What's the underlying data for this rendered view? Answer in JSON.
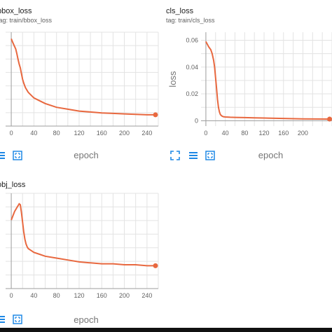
{
  "charts": [
    {
      "title": "bbox_loss",
      "tag": "tag: train/bbox_loss",
      "chart_data": {
        "type": "line",
        "xlabel": "epoch",
        "ylabel": "",
        "xlim": [
          -10,
          260
        ],
        "ylim": [
          0,
          1
        ],
        "xticks": [
          0,
          40,
          80,
          120,
          160,
          200,
          240
        ],
        "yticks": [],
        "series": [
          {
            "color": "#e8683f",
            "x": [
              0,
              2,
              5,
              8,
              10,
              12,
              14,
              16,
              18,
              20,
              22,
              25,
              30,
              35,
              40,
              50,
              60,
              80,
              100,
              120,
              140,
              160,
              180,
              200,
              220,
              240,
              255
            ],
            "y": [
              0.93,
              0.9,
              0.86,
              0.82,
              0.77,
              0.71,
              0.66,
              0.62,
              0.56,
              0.5,
              0.46,
              0.41,
              0.36,
              0.33,
              0.3,
              0.27,
              0.24,
              0.2,
              0.18,
              0.16,
              0.15,
              0.14,
              0.135,
              0.13,
              0.125,
              0.12,
              0.12
            ]
          }
        ]
      }
    },
    {
      "title": "cls_loss",
      "tag": "tag: train/cls_loss",
      "chart_data": {
        "type": "line",
        "xlabel": "epoch",
        "ylabel": "loss",
        "xlim": [
          -10,
          260
        ],
        "ylim": [
          -0.004,
          0.066
        ],
        "xticks": [
          0,
          40,
          80,
          120,
          160,
          200
        ],
        "yticks": [
          0,
          0.02,
          0.04,
          0.06
        ],
        "ytick_labels": [
          "0",
          "0.02",
          "0.04",
          "0.06"
        ],
        "series": [
          {
            "color": "#e8683f",
            "x": [
              0,
              3,
              6,
              10,
              13,
              16,
              18,
              20,
              22,
              24,
              26,
              28,
              30,
              33,
              36,
              40,
              50,
              60,
              80,
              100,
              120,
              160,
              200,
              255
            ],
            "y": [
              0.059,
              0.057,
              0.055,
              0.053,
              0.05,
              0.045,
              0.04,
              0.032,
              0.024,
              0.016,
              0.01,
              0.0065,
              0.0045,
              0.0035,
              0.003,
              0.0028,
              0.0026,
              0.0025,
              0.0023,
              0.0021,
              0.002,
              0.0017,
              0.0014,
              0.0012
            ]
          }
        ]
      }
    },
    {
      "title": "obj_loss",
      "tag": "",
      "chart_data": {
        "type": "line",
        "xlabel": "epoch",
        "ylabel": "",
        "xlim": [
          -10,
          260
        ],
        "ylim": [
          0,
          1
        ],
        "xticks": [
          0,
          40,
          80,
          120,
          160,
          200,
          240
        ],
        "yticks": [],
        "series": [
          {
            "color": "#e8683f",
            "x": [
              0,
              2,
              4,
              6,
              8,
              10,
              12,
              14,
              16,
              18,
              20,
              22,
              24,
              26,
              28,
              30,
              35,
              40,
              50,
              60,
              80,
              100,
              120,
              140,
              160,
              180,
              200,
              220,
              240,
              255
            ],
            "y": [
              0.72,
              0.75,
              0.78,
              0.81,
              0.83,
              0.85,
              0.87,
              0.89,
              0.88,
              0.8,
              0.7,
              0.6,
              0.52,
              0.47,
              0.44,
              0.42,
              0.4,
              0.38,
              0.36,
              0.34,
              0.32,
              0.3,
              0.28,
              0.27,
              0.26,
              0.26,
              0.25,
              0.25,
              0.24,
              0.24
            ]
          }
        ]
      }
    }
  ]
}
